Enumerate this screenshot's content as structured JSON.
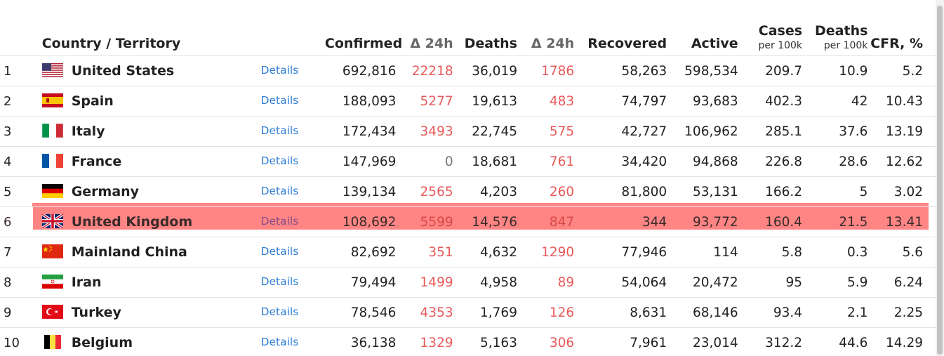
{
  "header": {
    "country": "Country / Territory",
    "confirmed": "Confirmed",
    "delta1": "Δ 24h",
    "deaths": "Deaths",
    "delta2": "Δ 24h",
    "recovered": "Recovered",
    "active": "Active",
    "cases_top": "Cases",
    "cases_sub": "per 100k",
    "deaths100k_top": "Deaths",
    "deaths100k_sub": "per 100k",
    "cfr": "CFR, %"
  },
  "colors": {
    "delta": "#e85a5a",
    "link": "#2f7dd6",
    "highlight": "#ff8585"
  },
  "rows": [
    {
      "rank": "1",
      "flag": "us-flag-icon",
      "country": "United States",
      "details": "Details",
      "confirmed": "692,816",
      "d1": "22218",
      "deaths": "36,019",
      "d2": "1786",
      "recovered": "58,263",
      "active": "598,534",
      "cases100k": "209.7",
      "deaths100k": "10.9",
      "cfr": "5.2"
    },
    {
      "rank": "2",
      "flag": "spain-flag-icon",
      "country": "Spain",
      "details": "Details",
      "confirmed": "188,093",
      "d1": "5277",
      "deaths": "19,613",
      "d2": "483",
      "recovered": "74,797",
      "active": "93,683",
      "cases100k": "402.3",
      "deaths100k": "42",
      "cfr": "10.43"
    },
    {
      "rank": "3",
      "flag": "italy-flag-icon",
      "country": "Italy",
      "details": "Details",
      "confirmed": "172,434",
      "d1": "3493",
      "deaths": "22,745",
      "d2": "575",
      "recovered": "42,727",
      "active": "106,962",
      "cases100k": "285.1",
      "deaths100k": "37.6",
      "cfr": "13.19"
    },
    {
      "rank": "4",
      "flag": "france-flag-icon",
      "country": "France",
      "details": "Details",
      "confirmed": "147,969",
      "d1": "0",
      "deaths": "18,681",
      "d2": "761",
      "recovered": "34,420",
      "active": "94,868",
      "cases100k": "226.8",
      "deaths100k": "28.6",
      "cfr": "12.62"
    },
    {
      "rank": "5",
      "flag": "germany-flag-icon",
      "country": "Germany",
      "details": "Details",
      "confirmed": "139,134",
      "d1": "2565",
      "deaths": "4,203",
      "d2": "260",
      "recovered": "81,800",
      "active": "53,131",
      "cases100k": "166.2",
      "deaths100k": "5",
      "cfr": "3.02"
    },
    {
      "rank": "6",
      "flag": "uk-flag-icon",
      "country": "United Kingdom",
      "details": "Details",
      "confirmed": "108,692",
      "d1": "5599",
      "deaths": "14,576",
      "d2": "847",
      "recovered": "344",
      "active": "93,772",
      "cases100k": "160.4",
      "deaths100k": "21.5",
      "cfr": "13.41",
      "highlighted": true
    },
    {
      "rank": "7",
      "flag": "china-flag-icon",
      "country": "Mainland China",
      "details": "Details",
      "confirmed": "82,692",
      "d1": "351",
      "deaths": "4,632",
      "d2": "1290",
      "recovered": "77,946",
      "active": "114",
      "cases100k": "5.8",
      "deaths100k": "0.3",
      "cfr": "5.6"
    },
    {
      "rank": "8",
      "flag": "iran-flag-icon",
      "country": "Iran",
      "details": "Details",
      "confirmed": "79,494",
      "d1": "1499",
      "deaths": "4,958",
      "d2": "89",
      "recovered": "54,064",
      "active": "20,472",
      "cases100k": "95",
      "deaths100k": "5.9",
      "cfr": "6.24"
    },
    {
      "rank": "9",
      "flag": "turkey-flag-icon",
      "country": "Turkey",
      "details": "Details",
      "confirmed": "78,546",
      "d1": "4353",
      "deaths": "1,769",
      "d2": "126",
      "recovered": "8,631",
      "active": "68,146",
      "cases100k": "93.4",
      "deaths100k": "2.1",
      "cfr": "2.25"
    },
    {
      "rank": "10",
      "flag": "belgium-flag-icon",
      "country": "Belgium",
      "details": "Details",
      "confirmed": "36,138",
      "d1": "1329",
      "deaths": "5,163",
      "d2": "306",
      "recovered": "7,961",
      "active": "23,014",
      "cases100k": "312.2",
      "deaths100k": "44.6",
      "cfr": "14.29"
    }
  ]
}
